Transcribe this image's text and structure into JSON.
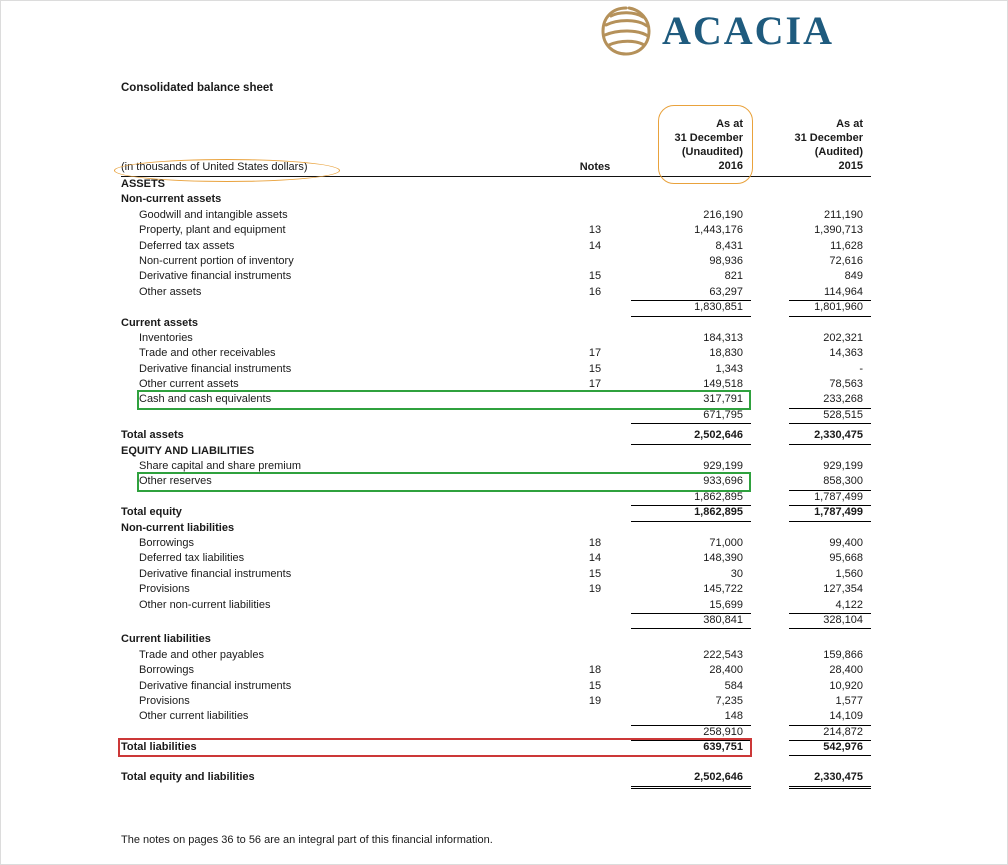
{
  "page": {
    "title": "Consolidated balance sheet",
    "footnote": "The notes on pages 36 to 56 are an integral part of this financial information."
  },
  "logo": {
    "text": "ACACIA"
  },
  "colors": {
    "logo-blue": "#1f5b7e",
    "logo-gold": "#b5915a",
    "annot-orange": "#e9a23c",
    "annot-green": "#2fa13e",
    "annot-red": "#cc3838"
  },
  "table": {
    "header": {
      "units_label": "(in thousands of United States dollars)",
      "notes_label": "Notes",
      "col_2016": [
        "As at",
        "31 December",
        "(Unaudited)",
        "2016"
      ],
      "col_2015": [
        "As at",
        "31 December",
        "(Audited)",
        "2015"
      ]
    },
    "rows": [
      {
        "type": "section",
        "label": "ASSETS"
      },
      {
        "type": "section",
        "label": "Non-current assets"
      },
      {
        "type": "item",
        "indent": true,
        "label": "Goodwill and intangible assets",
        "y2016": "216,190",
        "y2015": "211,190"
      },
      {
        "type": "item",
        "indent": true,
        "label": "Property, plant and equipment",
        "note": "13",
        "y2016": "1,443,176",
        "y2015": "1,390,713"
      },
      {
        "type": "item",
        "indent": true,
        "label": "Deferred tax assets",
        "note": "14",
        "y2016": "8,431",
        "y2015": "11,628"
      },
      {
        "type": "item",
        "indent": true,
        "label": "Non-current portion of inventory",
        "y2016": "98,936",
        "y2015": "72,616"
      },
      {
        "type": "item",
        "indent": true,
        "label": "Derivative financial instruments",
        "note": "15",
        "y2016": "821",
        "y2015": "849"
      },
      {
        "type": "item",
        "indent": true,
        "label": "Other assets",
        "note": "16",
        "y2016": "63,297",
        "y2015": "114,964",
        "ul": true
      },
      {
        "type": "subtotal",
        "y2016": "1,830,851",
        "y2015": "1,801,960",
        "ul": true
      },
      {
        "type": "section",
        "label": "Current assets"
      },
      {
        "type": "item",
        "indent": true,
        "label": "Inventories",
        "y2016": "184,313",
        "y2015": "202,321"
      },
      {
        "type": "item",
        "indent": true,
        "label": "Trade and other receivables",
        "note": "17",
        "y2016": "18,830",
        "y2015": "14,363"
      },
      {
        "type": "item",
        "indent": true,
        "label": "Derivative financial instruments",
        "note": "15",
        "y2016": "1,343",
        "y2015": "-"
      },
      {
        "type": "item",
        "indent": true,
        "label": "Other current assets",
        "note": "17",
        "y2016": "149,518",
        "y2015": "78,563"
      },
      {
        "type": "item",
        "indent": true,
        "label": "Cash and cash equivalents",
        "y2016": "317,791",
        "y2015": "233,268",
        "ul": true,
        "annot": "green"
      },
      {
        "type": "subtotal",
        "y2016": "671,795",
        "y2015": "528,515",
        "ul": true
      },
      {
        "type": "spacer",
        "h": 5
      },
      {
        "type": "total",
        "label": "Total assets",
        "y2016": "2,502,646",
        "y2015": "2,330,475",
        "ul": true
      },
      {
        "type": "section",
        "label": "EQUITY AND LIABILITIES"
      },
      {
        "type": "item",
        "indent": true,
        "label": "Share capital and share premium",
        "y2016": "929,199",
        "y2015": "929,199"
      },
      {
        "type": "item",
        "indent": true,
        "label": "Other reserves",
        "y2016": "933,696",
        "y2015": "858,300",
        "ul": true,
        "annot": "green"
      },
      {
        "type": "subtotal",
        "y2016": "1,862,895",
        "y2015": "1,787,499",
        "ul": true
      },
      {
        "type": "total",
        "label": "Total equity",
        "y2016": "1,862,895",
        "y2015": "1,787,499",
        "ul": true
      },
      {
        "type": "section",
        "label": "Non-current liabilities"
      },
      {
        "type": "item",
        "indent": true,
        "label": "Borrowings",
        "note": "18",
        "y2016": "71,000",
        "y2015": "99,400"
      },
      {
        "type": "item",
        "indent": true,
        "label": "Deferred tax liabilities",
        "note": "14",
        "y2016": "148,390",
        "y2015": "95,668"
      },
      {
        "type": "item",
        "indent": true,
        "label": "Derivative financial instruments",
        "note": "15",
        "y2016": "30",
        "y2015": "1,560"
      },
      {
        "type": "item",
        "indent": true,
        "label": "Provisions",
        "note": "19",
        "y2016": "145,722",
        "y2015": "127,354"
      },
      {
        "type": "item",
        "indent": true,
        "label": "Other non-current liabilities",
        "y2016": "15,699",
        "y2015": "4,122",
        "ul": true
      },
      {
        "type": "subtotal",
        "y2016": "380,841",
        "y2015": "328,104",
        "ul": true
      },
      {
        "type": "spacer",
        "h": 4
      },
      {
        "type": "section",
        "label": "Current liabilities"
      },
      {
        "type": "item",
        "indent": true,
        "label": "Trade and other payables",
        "y2016": "222,543",
        "y2015": "159,866"
      },
      {
        "type": "item",
        "indent": true,
        "label": "Borrowings",
        "note": "18",
        "y2016": "28,400",
        "y2015": "28,400"
      },
      {
        "type": "item",
        "indent": true,
        "label": "Derivative financial instruments",
        "note": "15",
        "y2016": "584",
        "y2015": "10,920"
      },
      {
        "type": "item",
        "indent": true,
        "label": "Provisions",
        "note": "19",
        "y2016": "7,235",
        "y2015": "1,577"
      },
      {
        "type": "item",
        "indent": true,
        "label": "Other current liabilities",
        "y2016": "148",
        "y2015": "14,109",
        "ul": true
      },
      {
        "type": "subtotal",
        "y2016": "258,910",
        "y2015": "214,872",
        "ul": true
      },
      {
        "type": "total",
        "label": "Total liabilities",
        "y2016": "639,751",
        "y2015": "542,976",
        "ul": true,
        "annot": "red"
      },
      {
        "type": "spacer",
        "h": 15
      },
      {
        "type": "total",
        "label": "Total equity and liabilities",
        "y2016": "2,502,646",
        "y2015": "2,330,475",
        "dul": true
      }
    ]
  }
}
